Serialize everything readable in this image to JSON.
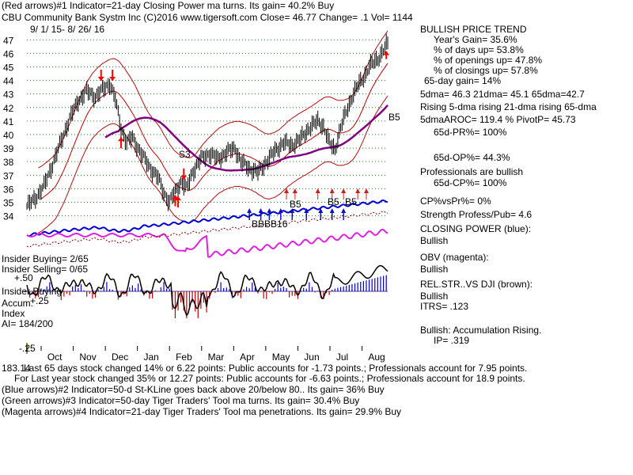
{
  "header": {
    "line1": "(Red arrows)#1 Indicator=21-day Closing Power ma turns. Its gain= 40.2% Buy",
    "line2": "CBU   Community Bank Systm Inc  (C)2016 www.tigersoft.com     Close=  46.77  Change= .1 Vol= 1144",
    "date_range": "9/ 1/ 15- 8/ 26/ 16"
  },
  "right_panel": [
    "BULLISH PRICE TREND",
    "Year's Gain= 35.6%",
    "% of days up= 53.8%",
    "% of openings up= 47.8%",
    "% of closings up= 57.8%",
    "65-day gain= 14%",
    "5dma= 46.3 21dma= 45.1 65dma=42.7",
    "Rising 5-dma rising 21-dma rising 65-dma",
    "5dmaAROC= 119.4 %  PivotP= 45.73",
    "65d-PR%= 100%",
    "65d-OP%= 44.3%",
    "Professionals are bullish",
    "65d-CP%= 100%",
    "CP%vsPr%=  0%",
    "Strength Profess/Pub= 4.6",
    "CLOSING POWER (blue):",
    "Bullish",
    "OBV (magenta):",
    "Bullish",
    "REL.STR..VS DJI (brown):",
    "Bullish",
    "ITRS= .123",
    "Bullish: Accumulation Rising.",
    "IP=  .319"
  ],
  "left_labels": {
    "insider_buying_1": "Insider Buying= 2/65",
    "insider_selling": "Insider Selling= 0/65",
    "plus50": "+.50",
    "insider_buying_2": "Insider Buying",
    "accum": "Accum.",
    "plus25": "+.25",
    "index": "Index",
    "ai": "AI= 184/200",
    "minus25": "-.25"
  },
  "signals": {
    "s3": "S3",
    "b5_right": "B5",
    "b5_may": "B5",
    "b5_jun_a": "B5",
    "b5_jun_b": "B5",
    "b_cluster": "BBBB16"
  },
  "footer": [
    "Last 65 days stock changed  14% or  6.22 points:  Public accounts for -1.73 points.;  Professionals account for  7.95 points.",
    "For Last year stock changed  35% or  12.27 points:  Public accounts for -6.63 points.;  Professionals account for  18.9 points.",
    "(Blue arrows)#2 Indicator=50-d St-KLine goes back above 20/below 80.. Its gain= 36% Buy",
    "(Green arrows)#3 Indicator=50-day Tiger Traders' Tool ma turns. Its gain= 30.4% Buy",
    "(Magenta arrows)#4 Indicator=21-day Tiger Traders' Tool ma penetrations. Its gain= 29.9% Buy"
  ],
  "footer_overlap": "183.14",
  "chart_data": {
    "type": "line",
    "title": "CBU   Community Bank Systm Inc",
    "ylim": [
      33.5,
      47.6
    ],
    "y_ticks": [
      34,
      35,
      36,
      37,
      38,
      39,
      40,
      41,
      42,
      43,
      44,
      45,
      46,
      47
    ],
    "months": [
      "Oct",
      "Nov",
      "Dec",
      "Jan",
      "Feb",
      "Mar",
      "Apr",
      "May",
      "Jun",
      "Jul",
      "Aug"
    ],
    "close_anchor": [
      [
        0,
        34.7
      ],
      [
        6,
        35.3
      ],
      [
        12,
        36.2
      ],
      [
        18,
        37.8
      ],
      [
        24,
        39.5
      ],
      [
        30,
        41.2
      ],
      [
        36,
        42.5
      ],
      [
        42,
        43.2
      ],
      [
        48,
        42.8
      ],
      [
        54,
        43.4
      ],
      [
        58,
        43.8
      ],
      [
        62,
        42.6
      ],
      [
        66,
        40.5
      ],
      [
        70,
        39.4
      ],
      [
        74,
        39.8
      ],
      [
        80,
        38.6
      ],
      [
        86,
        37.6
      ],
      [
        92,
        36.8
      ],
      [
        96,
        35.7
      ],
      [
        100,
        35.0
      ],
      [
        104,
        35.8
      ],
      [
        108,
        36.5
      ],
      [
        112,
        36.0
      ],
      [
        116,
        37.2
      ],
      [
        122,
        38.2
      ],
      [
        128,
        38.6
      ],
      [
        134,
        38.2
      ],
      [
        140,
        38.7
      ],
      [
        146,
        39.0
      ],
      [
        150,
        38.0
      ],
      [
        156,
        37.5
      ],
      [
        162,
        37.2
      ],
      [
        168,
        38.0
      ],
      [
        174,
        38.8
      ],
      [
        180,
        39.4
      ],
      [
        186,
        39.2
      ],
      [
        192,
        39.7
      ],
      [
        198,
        40.5
      ],
      [
        204,
        41.0
      ],
      [
        208,
        40.6
      ],
      [
        212,
        39.4
      ],
      [
        216,
        38.9
      ],
      [
        220,
        40.5
      ],
      [
        224,
        41.7
      ],
      [
        228,
        42.8
      ],
      [
        232,
        43.6
      ],
      [
        236,
        44.2
      ],
      [
        240,
        45.0
      ],
      [
        246,
        45.6
      ],
      [
        250,
        46.2
      ],
      [
        253,
        46.77
      ]
    ],
    "series": [
      {
        "name": "Closing Power"
      },
      {
        "name": "OBV"
      },
      {
        "name": "Accum. Index"
      }
    ]
  }
}
